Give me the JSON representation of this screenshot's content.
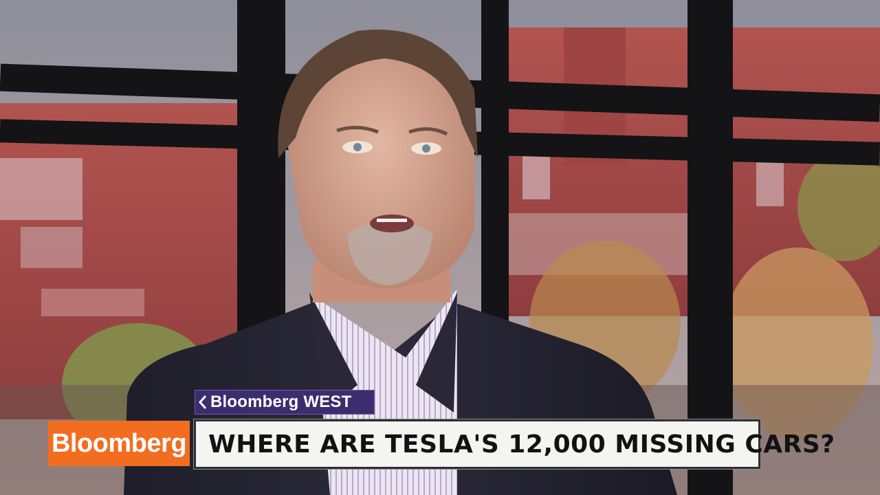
{
  "scene": {
    "description_icon": "interview-guest-in-studio-icon"
  },
  "show_tag": {
    "brand": "Bloomberg",
    "show": "WEST"
  },
  "logo": {
    "text": "Bloomberg"
  },
  "headline": {
    "text": "WHERE ARE TESLA'S 12,000 MISSING CARS?"
  },
  "colors": {
    "brand_orange": "#f36d21",
    "tag_purple": "#3b2d6e"
  }
}
